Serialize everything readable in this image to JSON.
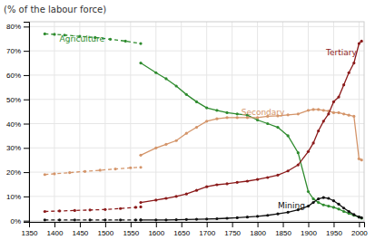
{
  "chart_data": {
    "type": "line",
    "title": "(% of the labour force)",
    "xlim": [
      1350,
      2010
    ],
    "ylim": [
      -0.005,
      0.82
    ],
    "xticks": [
      1350,
      1400,
      1450,
      1500,
      1550,
      1600,
      1650,
      1700,
      1750,
      1800,
      1850,
      1900,
      1950,
      2000
    ],
    "yticks": [
      {
        "value": 0.0,
        "label": "0%"
      },
      {
        "value": 0.1,
        "label": "10%"
      },
      {
        "value": 0.2,
        "label": "20%"
      },
      {
        "value": 0.3,
        "label": "30%"
      },
      {
        "value": 0.4,
        "label": "40%"
      },
      {
        "value": 0.5,
        "label": "50%"
      },
      {
        "value": 0.6,
        "label": "60%"
      },
      {
        "value": 0.7,
        "label": "70%"
      },
      {
        "value": 0.8,
        "label": "80%"
      }
    ],
    "grid": true,
    "series": [
      {
        "name": "Agriculture",
        "color": "#2e8b2e",
        "line_style": "dashed",
        "marker": "circle",
        "x": [
          1381,
          1400,
          1420,
          1450,
          1480,
          1510,
          1540,
          1570
        ],
        "values": [
          0.77,
          0.768,
          0.765,
          0.76,
          0.755,
          0.748,
          0.74,
          0.73
        ]
      },
      {
        "name": "Agriculture",
        "color": "#2e8b2e",
        "line_style": "solid",
        "marker": "circle",
        "x": [
          1570,
          1600,
          1620,
          1640,
          1660,
          1680,
          1700,
          1720,
          1740,
          1760,
          1780,
          1800,
          1820,
          1840,
          1860,
          1880,
          1900,
          1910,
          1920,
          1930,
          1940,
          1950,
          1960,
          1970,
          1980,
          1990,
          2000,
          2005
        ],
        "values": [
          0.65,
          0.61,
          0.585,
          0.555,
          0.52,
          0.49,
          0.465,
          0.455,
          0.445,
          0.44,
          0.435,
          0.415,
          0.4,
          0.385,
          0.35,
          0.28,
          0.12,
          0.09,
          0.075,
          0.065,
          0.06,
          0.055,
          0.048,
          0.038,
          0.03,
          0.022,
          0.015,
          0.01
        ]
      },
      {
        "name": "Secondary",
        "color": "#d4956a",
        "line_style": "dashed",
        "marker": "circle",
        "x": [
          1381,
          1400,
          1430,
          1460,
          1490,
          1520,
          1550,
          1570
        ],
        "values": [
          0.19,
          0.193,
          0.198,
          0.203,
          0.208,
          0.213,
          0.218,
          0.22
        ]
      },
      {
        "name": "Secondary",
        "color": "#d4956a",
        "line_style": "solid",
        "marker": "circle",
        "x": [
          1570,
          1600,
          1620,
          1640,
          1660,
          1680,
          1700,
          1720,
          1740,
          1760,
          1780,
          1800,
          1820,
          1840,
          1860,
          1880,
          1900,
          1910,
          1920,
          1930,
          1940,
          1950,
          1960,
          1970,
          1980,
          1990,
          2000,
          2005
        ],
        "values": [
          0.27,
          0.3,
          0.315,
          0.33,
          0.36,
          0.385,
          0.41,
          0.42,
          0.425,
          0.425,
          0.425,
          0.425,
          0.43,
          0.432,
          0.436,
          0.44,
          0.455,
          0.458,
          0.458,
          0.455,
          0.452,
          0.445,
          0.445,
          0.44,
          0.435,
          0.43,
          0.255,
          0.25
        ]
      },
      {
        "name": "Tertiary",
        "color": "#8b1a1a",
        "line_style": "dashed",
        "marker": "circle",
        "x": [
          1381,
          1410,
          1440,
          1470,
          1500,
          1530,
          1560,
          1570
        ],
        "values": [
          0.038,
          0.04,
          0.042,
          0.044,
          0.046,
          0.05,
          0.055,
          0.057
        ]
      },
      {
        "name": "Tertiary",
        "color": "#8b1a1a",
        "line_style": "solid",
        "marker": "circle",
        "x": [
          1570,
          1600,
          1620,
          1640,
          1660,
          1680,
          1700,
          1720,
          1740,
          1760,
          1780,
          1800,
          1820,
          1840,
          1860,
          1880,
          1900,
          1910,
          1920,
          1930,
          1940,
          1950,
          1960,
          1970,
          1980,
          1990,
          2000,
          2005
        ],
        "values": [
          0.075,
          0.085,
          0.092,
          0.1,
          0.11,
          0.125,
          0.14,
          0.148,
          0.152,
          0.158,
          0.163,
          0.17,
          0.178,
          0.188,
          0.205,
          0.23,
          0.285,
          0.32,
          0.37,
          0.41,
          0.44,
          0.49,
          0.51,
          0.56,
          0.61,
          0.65,
          0.73,
          0.74
        ]
      },
      {
        "name": "Mining",
        "color": "#111111",
        "line_style": "dashed",
        "marker": "circle",
        "x": [
          1381,
          1410,
          1440,
          1470,
          1500,
          1530,
          1560,
          1570
        ],
        "values": [
          0.003,
          0.003,
          0.003,
          0.003,
          0.003,
          0.003,
          0.003,
          0.003
        ]
      },
      {
        "name": "Mining",
        "color": "#111111",
        "line_style": "solid",
        "marker": "circle",
        "x": [
          1570,
          1600,
          1620,
          1640,
          1660,
          1680,
          1700,
          1720,
          1740,
          1760,
          1780,
          1800,
          1820,
          1840,
          1860,
          1880,
          1900,
          1910,
          1920,
          1930,
          1940,
          1950,
          1960,
          1970,
          1980,
          1990,
          2000,
          2005
        ],
        "values": [
          0.003,
          0.003,
          0.003,
          0.004,
          0.005,
          0.006,
          0.007,
          0.008,
          0.01,
          0.012,
          0.015,
          0.018,
          0.022,
          0.028,
          0.035,
          0.045,
          0.06,
          0.075,
          0.09,
          0.095,
          0.092,
          0.082,
          0.068,
          0.052,
          0.038,
          0.025,
          0.015,
          0.012
        ]
      }
    ],
    "annotations": [
      {
        "text": "Agriculture",
        "x": 1410,
        "y": 0.748,
        "color": "#2e8b2e"
      },
      {
        "text": "Secondary",
        "x": 1768,
        "y": 0.448,
        "color": "#d4956a"
      },
      {
        "text": "Tertiary",
        "x": 1935,
        "y": 0.695,
        "color": "#8b1a1a"
      },
      {
        "text": "Mining",
        "x": 1840,
        "y": 0.062,
        "color": "#111111"
      }
    ]
  }
}
